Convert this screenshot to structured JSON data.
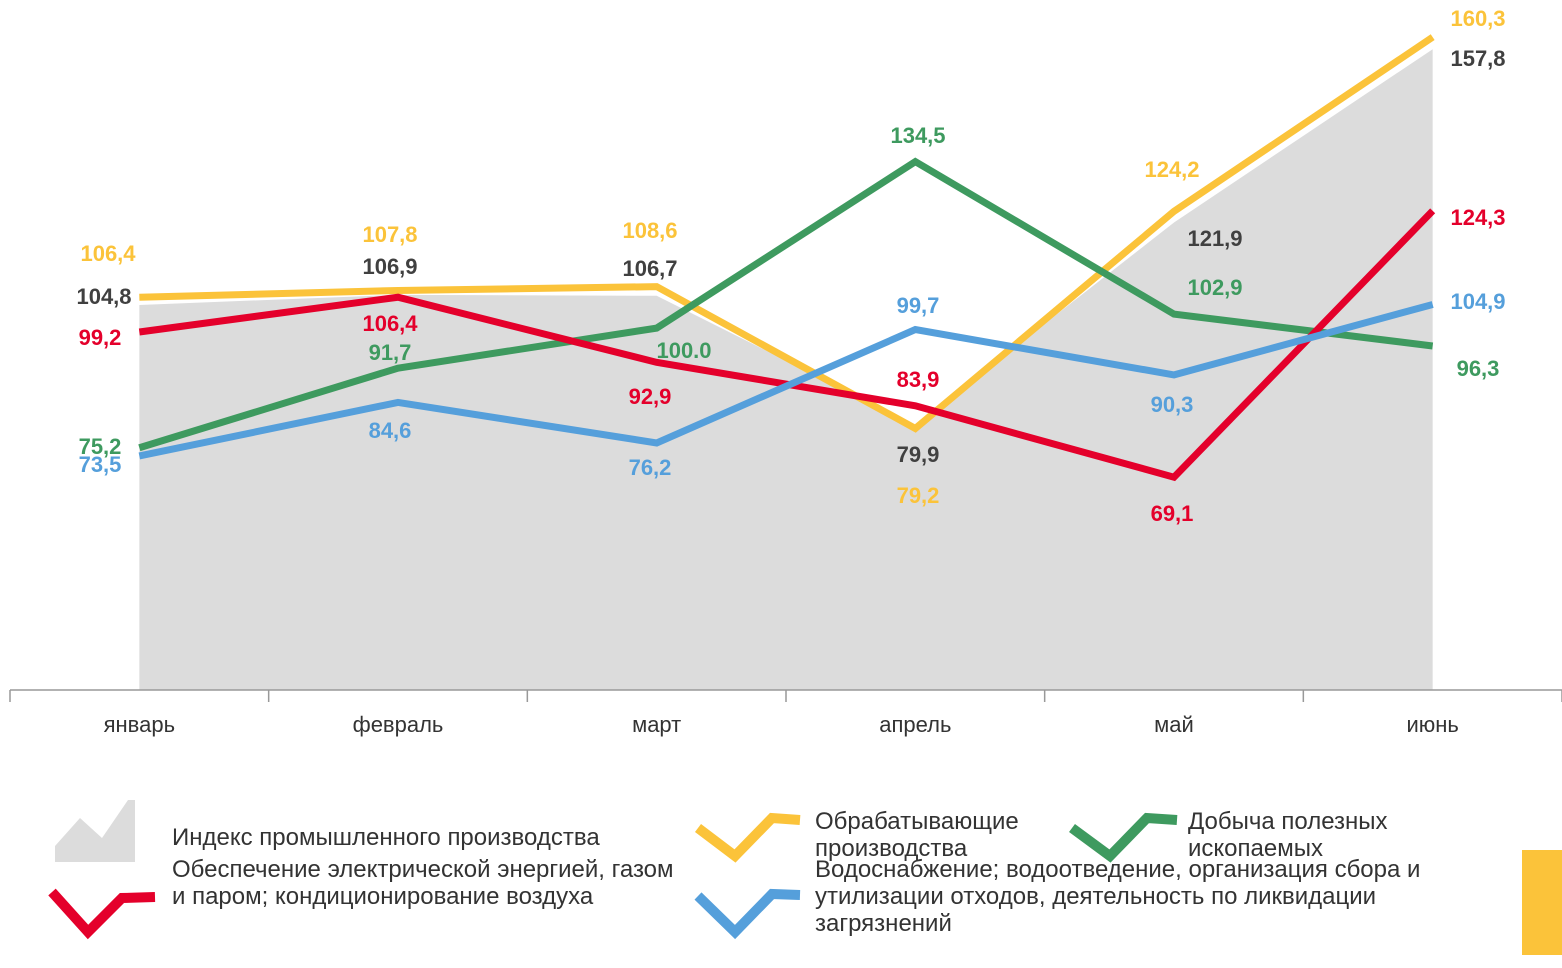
{
  "chart_data": {
    "type": "line",
    "categories": [
      "январь",
      "февраль",
      "март",
      "апрель",
      "май",
      "июнь"
    ],
    "ylim": [
      25,
      168
    ],
    "series": [
      {
        "name": "Индекс промышленного производства",
        "color": "#dcdcdc",
        "kind": "area",
        "values": [
          104.8,
          106.9,
          106.7,
          79.9,
          121.9,
          157.8
        ],
        "value_labels": [
          "104,8",
          "106,9",
          "106,7",
          "79,9",
          "121,9",
          "157,8"
        ],
        "label_color": "#404040"
      },
      {
        "name": "Обрабатывающие производства",
        "color": "#fbc33a",
        "values": [
          106.4,
          107.8,
          108.6,
          79.2,
          124.2,
          160.3
        ],
        "value_labels": [
          "106,4",
          "107,8",
          "108,6",
          "79,2",
          "124,2",
          "160,3"
        ]
      },
      {
        "name": "Добыча полезных ископаемых",
        "color": "#3e9a5f",
        "values": [
          75.2,
          91.7,
          100.0,
          134.5,
          102.9,
          96.3
        ],
        "value_labels": [
          "75,2",
          "91,7",
          "100.0",
          "134,5",
          "102,9",
          "96,3"
        ]
      },
      {
        "name": "Обеспечение электрической энергией, газом и паром; кондиционирование воздуха",
        "color": "#e4002b",
        "values": [
          99.2,
          106.4,
          92.9,
          83.9,
          69.1,
          124.3
        ],
        "value_labels": [
          "99,2",
          "106,4",
          "92,9",
          "83,9",
          "69,1",
          "124,3"
        ]
      },
      {
        "name": "Водоснабжение; водоотведение, организация сбора и утилизации отходов, деятельность по ликвидации загрязнений",
        "color": "#559fdb",
        "values": [
          73.5,
          84.6,
          76.2,
          99.7,
          90.3,
          104.9
        ],
        "value_labels": [
          "73,5",
          "84,6",
          "76,2",
          "99,7",
          "90,3",
          "104,9"
        ]
      }
    ]
  }
}
